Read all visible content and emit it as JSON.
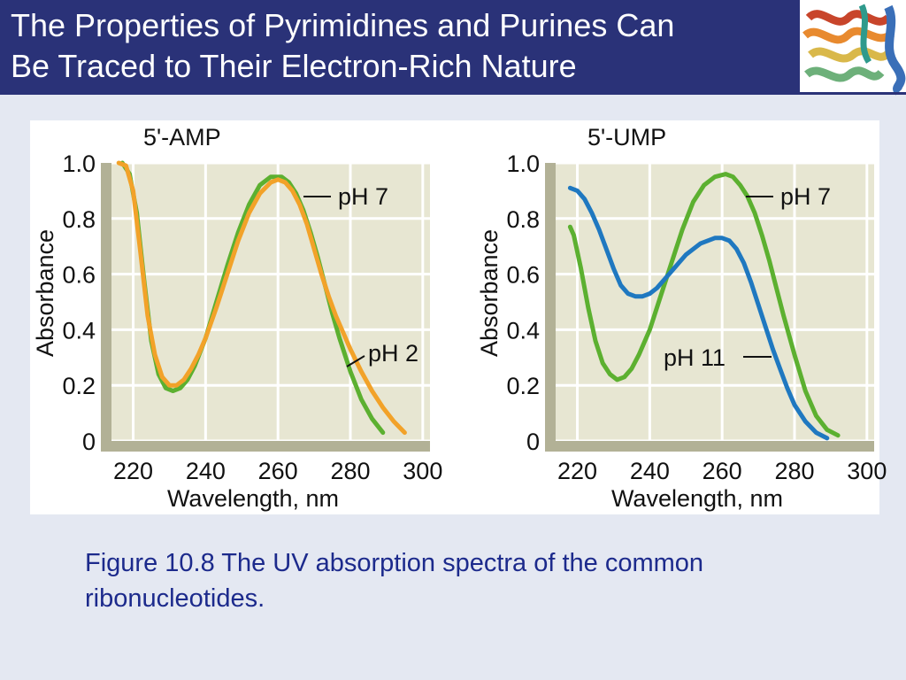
{
  "slide": {
    "title_line1": "The Properties of Pyrimidines and Purines Can",
    "title_line2": "Be Traced to Their Electron-Rich Nature",
    "caption_line1": "Figure 10.8  The UV absorption spectra of the common",
    "caption_line2": "ribonucleotides.",
    "colors": {
      "title_background": "#2a3278",
      "slide_background": "#e4e8f2",
      "caption_text": "#1c2a8c",
      "plot_background": "#e7e6d2",
      "axis_frame": "#b2b196"
    },
    "title_image_icon": "protein-ribbon-icon"
  },
  "chart_data": [
    {
      "type": "line",
      "title": "5'-AMP",
      "xlabel": "Wavelength, nm",
      "ylabel": "Absorbance",
      "xlim": [
        214,
        302
      ],
      "ylim": [
        0,
        1.0
      ],
      "x_ticks": [
        "220",
        "240",
        "260",
        "280",
        "300"
      ],
      "y_ticks": [
        "0",
        "0.2",
        "0.4",
        "0.6",
        "0.8",
        "1.0"
      ],
      "grid": true,
      "series": [
        {
          "name": "pH 7",
          "color": "#5cb030",
          "x": [
            217,
            219,
            221,
            223,
            225,
            227,
            229,
            231,
            233,
            235,
            237,
            240,
            243,
            246,
            249,
            252,
            255,
            258,
            261,
            263,
            265,
            267,
            269,
            271,
            273,
            275,
            277,
            280,
            283,
            286,
            289
          ],
          "y": [
            1.0,
            0.96,
            0.82,
            0.58,
            0.36,
            0.24,
            0.19,
            0.18,
            0.19,
            0.22,
            0.27,
            0.37,
            0.5,
            0.63,
            0.75,
            0.85,
            0.92,
            0.95,
            0.95,
            0.93,
            0.89,
            0.83,
            0.75,
            0.66,
            0.56,
            0.46,
            0.37,
            0.25,
            0.15,
            0.08,
            0.03
          ]
        },
        {
          "name": "pH 2",
          "color": "#f2a229",
          "x": [
            216,
            218,
            220,
            222,
            224,
            226,
            228,
            230,
            232,
            234,
            236,
            238,
            240,
            243,
            246,
            249,
            252,
            255,
            258,
            260,
            262,
            264,
            266,
            268,
            270,
            272,
            274,
            276,
            278,
            280,
            283,
            286,
            289,
            292,
            295
          ],
          "y": [
            1.0,
            0.99,
            0.9,
            0.68,
            0.45,
            0.31,
            0.23,
            0.2,
            0.2,
            0.22,
            0.26,
            0.31,
            0.37,
            0.48,
            0.6,
            0.72,
            0.82,
            0.89,
            0.93,
            0.94,
            0.93,
            0.9,
            0.85,
            0.78,
            0.69,
            0.6,
            0.52,
            0.45,
            0.39,
            0.33,
            0.25,
            0.18,
            0.12,
            0.07,
            0.03
          ]
        }
      ]
    },
    {
      "type": "line",
      "title": "5'-UMP",
      "xlabel": "Wavelength, nm",
      "ylabel": "Absorbance",
      "xlim": [
        214,
        302
      ],
      "ylim": [
        0,
        1.0
      ],
      "x_ticks": [
        "220",
        "240",
        "260",
        "280",
        "300"
      ],
      "y_ticks": [
        "0",
        "0.2",
        "0.4",
        "0.6",
        "0.8",
        "1.0"
      ],
      "grid": true,
      "series": [
        {
          "name": "pH 7",
          "color": "#5cb030",
          "x": [
            218,
            219,
            221,
            223,
            225,
            227,
            229,
            231,
            233,
            235,
            237,
            240,
            243,
            246,
            249,
            252,
            255,
            258,
            261,
            263,
            265,
            267,
            269,
            271,
            273,
            275,
            277,
            280,
            283,
            286,
            289,
            292
          ],
          "y": [
            0.77,
            0.74,
            0.62,
            0.48,
            0.36,
            0.28,
            0.24,
            0.22,
            0.23,
            0.26,
            0.31,
            0.4,
            0.52,
            0.64,
            0.76,
            0.86,
            0.92,
            0.95,
            0.96,
            0.95,
            0.92,
            0.88,
            0.82,
            0.74,
            0.65,
            0.55,
            0.45,
            0.31,
            0.18,
            0.09,
            0.04,
            0.02
          ]
        },
        {
          "name": "pH 11",
          "color": "#1f78c0",
          "x": [
            218,
            220,
            222,
            224,
            226,
            228,
            230,
            232,
            234,
            236,
            238,
            240,
            242,
            244,
            246,
            248,
            250,
            252,
            254,
            256,
            258,
            260,
            262,
            264,
            266,
            268,
            270,
            272,
            274,
            276,
            278,
            280,
            283,
            286,
            289
          ],
          "y": [
            0.91,
            0.9,
            0.87,
            0.82,
            0.76,
            0.69,
            0.62,
            0.56,
            0.53,
            0.52,
            0.52,
            0.53,
            0.55,
            0.58,
            0.61,
            0.64,
            0.67,
            0.69,
            0.71,
            0.72,
            0.73,
            0.73,
            0.72,
            0.69,
            0.64,
            0.57,
            0.49,
            0.41,
            0.33,
            0.26,
            0.19,
            0.13,
            0.07,
            0.03,
            0.01
          ]
        }
      ]
    }
  ]
}
